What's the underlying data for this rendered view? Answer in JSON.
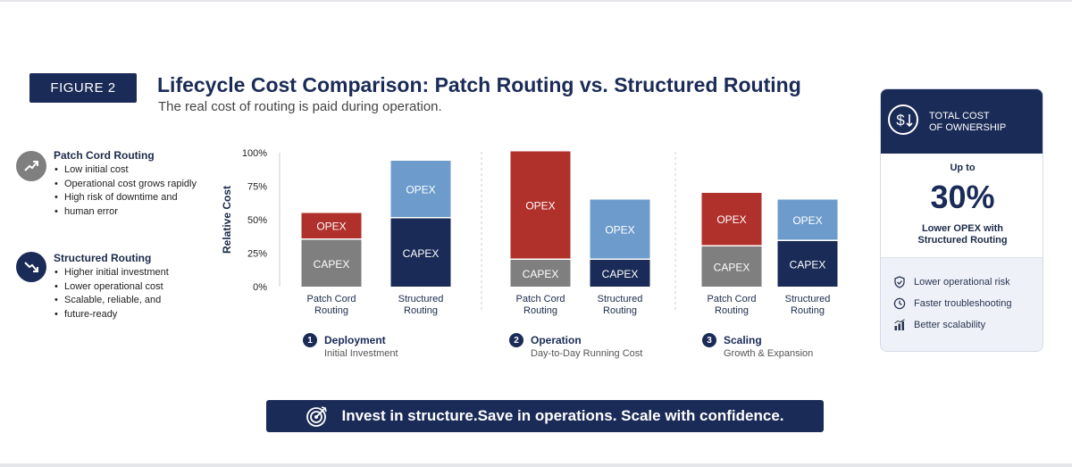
{
  "header": {
    "figure_label": "FIGURE 2",
    "title": "Lifecycle Cost Comparison: Patch Routing vs. Structured Routing",
    "subtitle": "The real cost of routing is paid during operation."
  },
  "approaches": [
    {
      "name": "Patch Cord Routing",
      "icon": "trend-up-icon",
      "bullets": [
        "Low initial cost",
        "Operational cost grows rapidly",
        "High risk of downtime and",
        "human error"
      ]
    },
    {
      "name": "Structured Routing",
      "icon": "trend-down-icon",
      "bullets": [
        "Higher initial investment",
        "Lower operational cost",
        "Scalable, reliable, and",
        "future-ready"
      ]
    }
  ],
  "stages": [
    {
      "num": "1",
      "name": "Deployment",
      "desc": "Initial Investment"
    },
    {
      "num": "2",
      "name": "Operation",
      "desc": "Day-to-Day Running Cost"
    },
    {
      "num": "3",
      "name": "Scaling",
      "desc": "Growth & Expansion"
    }
  ],
  "chart_data": {
    "type": "bar",
    "stacked": true,
    "ylabel": "Relative Cost",
    "ylim": [
      0,
      100
    ],
    "yticks": [
      "0%",
      "25%",
      "50%",
      "75%",
      "100%"
    ],
    "grid": false,
    "groups": [
      "Deployment",
      "Operation",
      "Scaling"
    ],
    "categories": [
      "Patch Cord\nRouting",
      "Structured\nRouting",
      "Patch Cord\nRouting",
      "Structured\nRouting",
      "Patch Cord\nRouting",
      "Structured\nRouting"
    ],
    "series": [
      {
        "name": "CAPEX",
        "values": [
          35,
          51,
          20,
          20,
          30,
          34
        ]
      },
      {
        "name": "OPEX",
        "values": [
          20,
          43,
          81,
          45,
          40,
          31
        ]
      }
    ],
    "colors": {
      "patch_capex": "#7f7f7f",
      "patch_opex": "#b0302b",
      "structured_capex": "#1a2b57",
      "structured_opex": "#6d9ccc"
    }
  },
  "tco": {
    "header": [
      "TOTAL COST",
      "OF OWNERSHIP"
    ],
    "icon": "dollar-down-icon",
    "up_to": "Up to",
    "value": "30%",
    "sub": [
      "Lower OPEX with",
      "Structured Routing"
    ],
    "benefits": [
      {
        "icon": "shield-check-icon",
        "label": "Lower operational risk"
      },
      {
        "icon": "clock-icon",
        "label": "Faster troubleshooting"
      },
      {
        "icon": "bar-growth-icon",
        "label": "Better scalability"
      }
    ]
  },
  "banner": {
    "icon": "target-icon",
    "text": "Invest in structure.Save in operations. Scale with confidence."
  },
  "colors": {
    "navy": "#1a2b57",
    "red": "#b0302b",
    "gray": "#7f7f7f",
    "light_blue": "#6d9ccc"
  }
}
